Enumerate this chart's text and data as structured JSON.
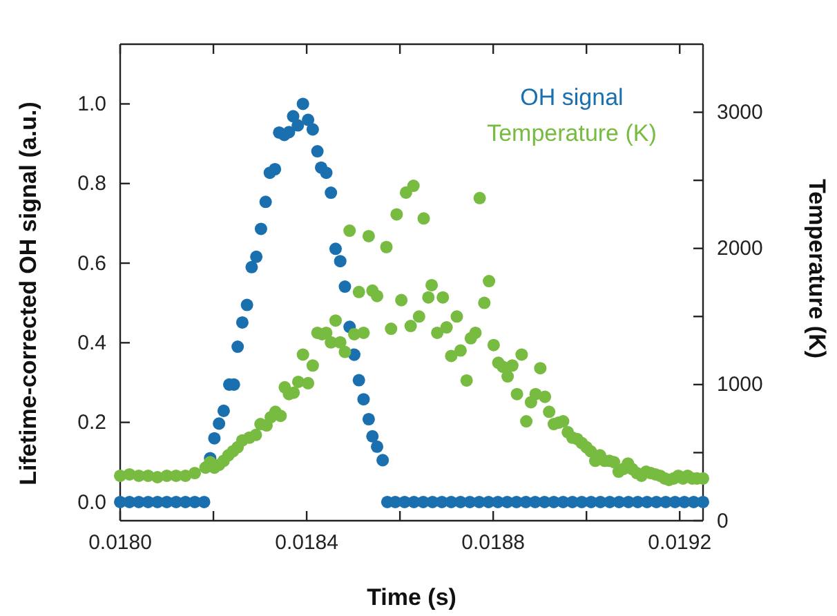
{
  "chart_data": {
    "type": "scatter",
    "xlabel": "Time (s)",
    "ylabel": "Lifetime-corrected OH signal (a.u.)",
    "y2label": "Temperature (K)",
    "marker": "circle",
    "legend": "top right",
    "grid": false,
    "xlim": [
      0.018,
      0.01925
    ],
    "xticks": [
      {
        "value": 0.018,
        "label": "0.0180"
      },
      {
        "value": 0.0182,
        "label": null
      },
      {
        "value": 0.0184,
        "label": "0.0184"
      },
      {
        "value": 0.0186,
        "label": null
      },
      {
        "value": 0.0188,
        "label": "0.0188"
      },
      {
        "value": 0.019,
        "label": null
      },
      {
        "value": 0.0192,
        "label": "0.0192"
      }
    ],
    "ylim": [
      -0.047,
      1.15
    ],
    "yticks": [
      {
        "value": 0,
        "label": "0.0"
      },
      {
        "value": 0.2,
        "label": "0.2"
      },
      {
        "value": 0.4,
        "label": "0.4"
      },
      {
        "value": 0.6,
        "label": "0.6"
      },
      {
        "value": 0.8,
        "label": "0.8"
      },
      {
        "value": 1,
        "label": "1.0"
      }
    ],
    "y2lim": [
      0,
      3500
    ],
    "y2ticks": [
      0,
      {
        "value": 500,
        "label": null
      },
      1000,
      {
        "value": 1500,
        "label": null
      },
      2000,
      {
        "value": 2500,
        "label": null
      },
      3000
    ],
    "series": [
      {
        "name": "OH signal",
        "color": "#1a6faf",
        "x": [
          0.018,
          0.01802,
          0.01804,
          0.01806,
          0.01808,
          0.0181,
          0.01812,
          0.01814,
          0.01816,
          0.01818,
          0.018193,
          0.018202,
          0.018212,
          0.018222,
          0.018234,
          0.018244,
          0.018252,
          0.018262,
          0.018272,
          0.018282,
          0.018292,
          0.018302,
          0.018312,
          0.018321,
          0.018332,
          0.018341,
          0.018352,
          0.018362,
          0.018371,
          0.018381,
          0.018392,
          0.018403,
          0.018413,
          0.018423,
          0.018431,
          0.018442,
          0.018452,
          0.018462,
          0.018472,
          0.018482,
          0.018492,
          0.018502,
          0.018512,
          0.018522,
          0.018533,
          0.018541,
          0.018551,
          0.018563,
          0.018573,
          0.01859,
          0.01861,
          0.01863,
          0.01865,
          0.01867,
          0.01869,
          0.01871,
          0.01873,
          0.01875,
          0.01877,
          0.01879,
          0.01881,
          0.01883,
          0.01885,
          0.01887,
          0.01889,
          0.01891,
          0.01893,
          0.01895,
          0.01897,
          0.01899,
          0.01901,
          0.01903,
          0.01905,
          0.01907,
          0.01909,
          0.01911,
          0.01913,
          0.01915,
          0.01917,
          0.01919,
          0.01921,
          0.01923,
          0.01925
        ],
        "values": [
          0,
          0,
          0,
          0,
          0,
          0,
          0,
          0,
          0,
          0,
          0.11,
          0.16,
          0.197,
          0.229,
          0.295,
          0.295,
          0.39,
          0.451,
          0.495,
          0.59,
          0.616,
          0.686,
          0.754,
          0.827,
          0.836,
          0.928,
          0.922,
          0.929,
          0.969,
          0.946,
          1.0,
          0.96,
          0.936,
          0.881,
          0.84,
          0.827,
          0.777,
          0.636,
          0.605,
          0.541,
          0.44,
          0.37,
          0.306,
          0.258,
          0.208,
          0.165,
          0.139,
          0.105,
          0,
          0,
          0,
          0,
          0,
          0,
          0,
          0,
          0,
          0,
          0,
          0,
          0,
          0,
          0,
          0,
          0,
          0,
          0,
          0,
          0,
          0,
          0,
          0,
          0,
          0,
          0,
          0,
          0,
          0,
          0,
          0,
          0,
          0,
          0
        ]
      },
      {
        "name": "Temperature (K)",
        "color": "#77bb41",
        "axis": "y2",
        "x": [
          0.018,
          0.01802,
          0.01804,
          0.01806,
          0.01808,
          0.0181,
          0.01812,
          0.01814,
          0.01816,
          0.018183,
          0.018193,
          0.018202,
          0.018212,
          0.018222,
          0.018232,
          0.018242,
          0.018252,
          0.018262,
          0.018277,
          0.018291,
          0.018301,
          0.018314,
          0.018323,
          0.018333,
          0.018344,
          0.018353,
          0.018362,
          0.018372,
          0.018382,
          0.018392,
          0.018403,
          0.018413,
          0.018423,
          0.018433,
          0.018442,
          0.018452,
          0.018462,
          0.018472,
          0.018482,
          0.018492,
          0.018502,
          0.018512,
          0.018522,
          0.018533,
          0.018541,
          0.018551,
          0.018571,
          0.018581,
          0.018593,
          0.018603,
          0.018613,
          0.018623,
          0.018629,
          0.018641,
          0.018651,
          0.018661,
          0.018668,
          0.01868,
          0.018692,
          0.0187,
          0.01871,
          0.018722,
          0.01873,
          0.018743,
          0.018752,
          0.018762,
          0.018771,
          0.018781,
          0.018791,
          0.018801,
          0.018811,
          0.018821,
          0.018831,
          0.018841,
          0.018851,
          0.018861,
          0.018871,
          0.018881,
          0.018891,
          0.018901,
          0.018911,
          0.01892,
          0.01893,
          0.01894,
          0.01895,
          0.01896,
          0.01897,
          0.01898,
          0.01899,
          0.019,
          0.019009,
          0.019019,
          0.019029,
          0.019039,
          0.019049,
          0.019059,
          0.019069,
          0.019079,
          0.019089,
          0.019098,
          0.019108,
          0.019118,
          0.019128,
          0.019138,
          0.019148,
          0.019158,
          0.019168,
          0.019177,
          0.019187,
          0.019197,
          0.019207,
          0.019217,
          0.019227,
          0.019237,
          0.01925
        ],
        "values": [
          330,
          340,
          330,
          330,
          320,
          330,
          330,
          330,
          350,
          390,
          430,
          390,
          410,
          440,
          480,
          510,
          540,
          590,
          610,
          630,
          710,
          700,
          760,
          800,
          770,
          980,
          930,
          940,
          1020,
          1220,
          1010,
          1140,
          1380,
          1370,
          1380,
          1310,
          1470,
          1310,
          1240,
          2130,
          1370,
          1680,
          1380,
          2090,
          1690,
          1650,
          2010,
          1410,
          2250,
          1620,
          2410,
          1430,
          2460,
          1500,
          2220,
          1640,
          1730,
          1380,
          1640,
          1420,
          1210,
          1500,
          1250,
          1030,
          1340,
          1380,
          2370,
          1600,
          1760,
          1290,
          1160,
          1130,
          1060,
          1140,
          930,
          1220,
          730,
          870,
          930,
          1120,
          910,
          800,
          710,
          720,
          730,
          650,
          610,
          600,
          570,
          540,
          510,
          440,
          480,
          440,
          440,
          430,
          360,
          380,
          420,
          380,
          350,
          330,
          360,
          350,
          340,
          330,
          310,
          300,
          310,
          330,
          310,
          330,
          310,
          310,
          310
        ]
      }
    ]
  }
}
